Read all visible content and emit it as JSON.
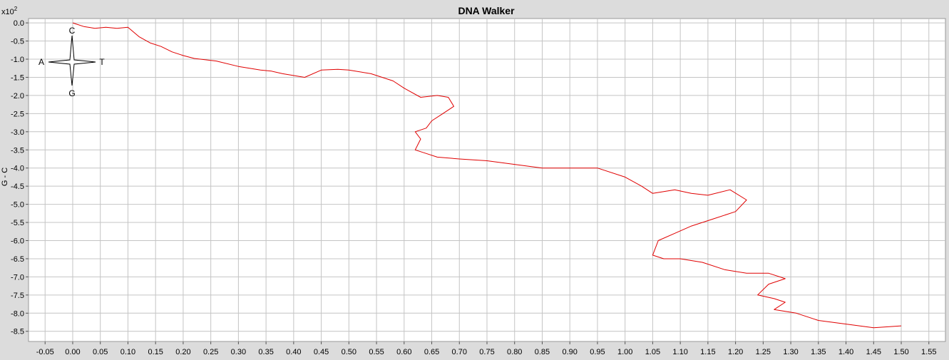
{
  "chart_data": {
    "type": "line",
    "title": "DNA Walker",
    "ylabel": "G - C",
    "xlabel": "",
    "y_multiplier": "x10",
    "y_multiplier_exp": "2",
    "xlim": [
      -0.08,
      1.58
    ],
    "ylim": [
      -8.78,
      0.12
    ],
    "grid": true,
    "x_ticks": [
      "-0.05",
      "0.00",
      "0.05",
      "0.10",
      "0.15",
      "0.20",
      "0.25",
      "0.30",
      "0.35",
      "0.40",
      "0.45",
      "0.50",
      "0.55",
      "0.60",
      "0.65",
      "0.70",
      "0.75",
      "0.80",
      "0.85",
      "0.90",
      "0.95",
      "1.00",
      "1.05",
      "1.10",
      "1.15",
      "1.20",
      "1.25",
      "1.30",
      "1.35",
      "1.40",
      "1.45",
      "1.50",
      "1.55"
    ],
    "y_ticks": [
      "0.0",
      "-0.5",
      "-1.0",
      "-1.5",
      "-2.0",
      "-2.5",
      "-3.0",
      "-3.5",
      "-4.0",
      "-4.5",
      "-5.0",
      "-5.5",
      "-6.0",
      "-6.5",
      "-7.0",
      "-7.5",
      "-8.0",
      "-8.5"
    ],
    "series": [
      {
        "color": "#e00000",
        "x": [
          0.0,
          0.02,
          0.04,
          0.06,
          0.08,
          0.1,
          0.12,
          0.14,
          0.16,
          0.18,
          0.2,
          0.22,
          0.26,
          0.3,
          0.34,
          0.36,
          0.38,
          0.42,
          0.45,
          0.48,
          0.5,
          0.54,
          0.58,
          0.6,
          0.63,
          0.66,
          0.68,
          0.69,
          0.67,
          0.65,
          0.64,
          0.62,
          0.63,
          0.62,
          0.64,
          0.66,
          0.7,
          0.75,
          0.8,
          0.85,
          0.9,
          0.95,
          1.0,
          1.03,
          1.05,
          1.09,
          1.12,
          1.15,
          1.19,
          1.22,
          1.2,
          1.16,
          1.12,
          1.09,
          1.06,
          1.05,
          1.07,
          1.1,
          1.14,
          1.18,
          1.22,
          1.26,
          1.29,
          1.26,
          1.24,
          1.27,
          1.29,
          1.27,
          1.31,
          1.35,
          1.4,
          1.45,
          1.5
        ],
        "y": [
          0.0,
          -0.1,
          -0.15,
          -0.12,
          -0.15,
          -0.12,
          -0.38,
          -0.55,
          -0.65,
          -0.8,
          -0.9,
          -0.98,
          -1.05,
          -1.2,
          -1.3,
          -1.33,
          -1.4,
          -1.5,
          -1.3,
          -1.28,
          -1.3,
          -1.4,
          -1.6,
          -1.8,
          -2.05,
          -2.0,
          -2.05,
          -2.3,
          -2.5,
          -2.7,
          -2.9,
          -3.0,
          -3.2,
          -3.5,
          -3.6,
          -3.7,
          -3.75,
          -3.8,
          -3.9,
          -4.0,
          -4.0,
          -4.0,
          -4.25,
          -4.5,
          -4.7,
          -4.6,
          -4.7,
          -4.75,
          -4.6,
          -4.88,
          -5.2,
          -5.4,
          -5.6,
          -5.8,
          -6.0,
          -6.4,
          -6.5,
          -6.5,
          -6.6,
          -6.8,
          -6.9,
          -6.9,
          -7.05,
          -7.2,
          -7.5,
          -7.6,
          -7.7,
          -7.9,
          -8.0,
          -8.2,
          -8.3,
          -8.4,
          -8.35
        ]
      }
    ]
  },
  "compass": {
    "top": "C",
    "bottom": "G",
    "left": "A",
    "right": "T"
  }
}
